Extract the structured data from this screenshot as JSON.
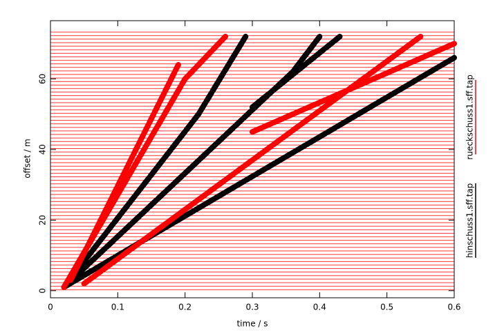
{
  "chart_data": {
    "type": "line",
    "xlabel": "time / s",
    "ylabel": "offset / m",
    "xlim": [
      0,
      0.6
    ],
    "ylim": [
      -2,
      76.5
    ],
    "xticks": [
      0,
      0.1,
      0.2,
      0.3,
      0.4,
      0.5,
      0.6
    ],
    "yticks": [
      0,
      20,
      40,
      60
    ],
    "series": [
      {
        "name": "hinschuss1.sff.tap",
        "color": "#000000",
        "x": [
          0.02,
          0.6,
          null,
          0.02,
          0.36,
          0.4,
          null,
          0.02,
          0.22,
          0.29,
          null,
          0.3,
          0.43
        ],
        "values": [
          1,
          66,
          null,
          1,
          62,
          72,
          null,
          1,
          50,
          72,
          null,
          52,
          72
        ]
      },
      {
        "name": "rueckschuss1.sff.tap",
        "color": "#ff0000",
        "x": [
          0.02,
          0.2,
          0.26,
          null,
          0.03,
          0.19,
          null,
          0.05,
          0.55,
          null,
          0.3,
          0.6
        ],
        "values": [
          1,
          60,
          72,
          null,
          3,
          64,
          null,
          2,
          72,
          null,
          45,
          70
        ]
      }
    ]
  }
}
